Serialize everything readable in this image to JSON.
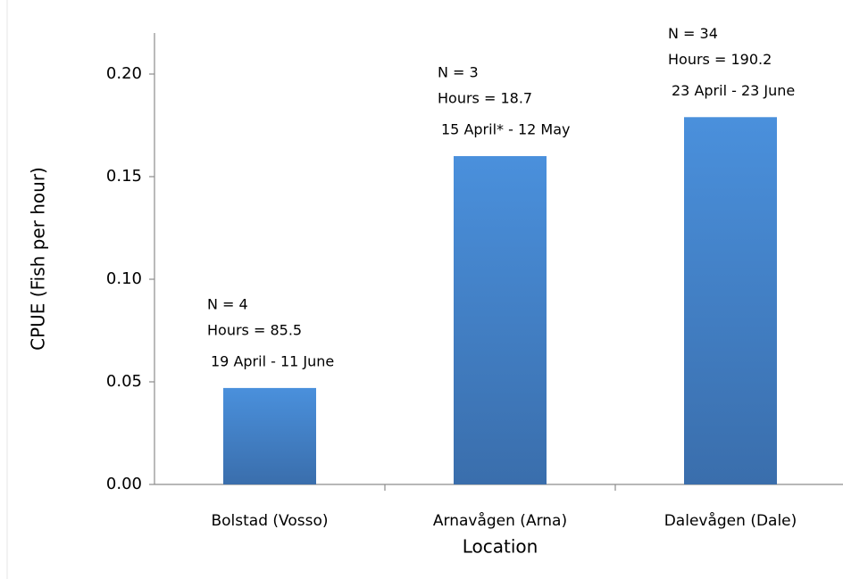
{
  "chart_data": {
    "type": "bar",
    "y_label": "CPUE (Fish per hour)",
    "x_label": "Location",
    "categories": [
      "Bolstad (Vosso)",
      "Arnavågen (Arna)",
      "Dalevågen (Dale)"
    ],
    "values": [
      0.047,
      0.16,
      0.179
    ],
    "color": "#4a8bd6",
    "annotations": [
      [
        "N = 4",
        "Hours = 85.5",
        "19 April - 11 June"
      ],
      [
        "N = 3",
        "Hours = 18.7",
        "15 April*  - 12 May"
      ],
      [
        "N = 34",
        "Hours = 190.2",
        "23 April - 23 June"
      ]
    ],
    "ylim": [
      0,
      0.22
    ],
    "yticks": [
      {
        "value": 0,
        "label": "0.00"
      },
      {
        "value": 0.05,
        "label": "0.05"
      },
      {
        "value": 0.1,
        "label": "0.10"
      },
      {
        "value": 0.15,
        "label": "0.15"
      },
      {
        "value": 0.2,
        "label": "0.20"
      }
    ],
    "grid": false
  }
}
